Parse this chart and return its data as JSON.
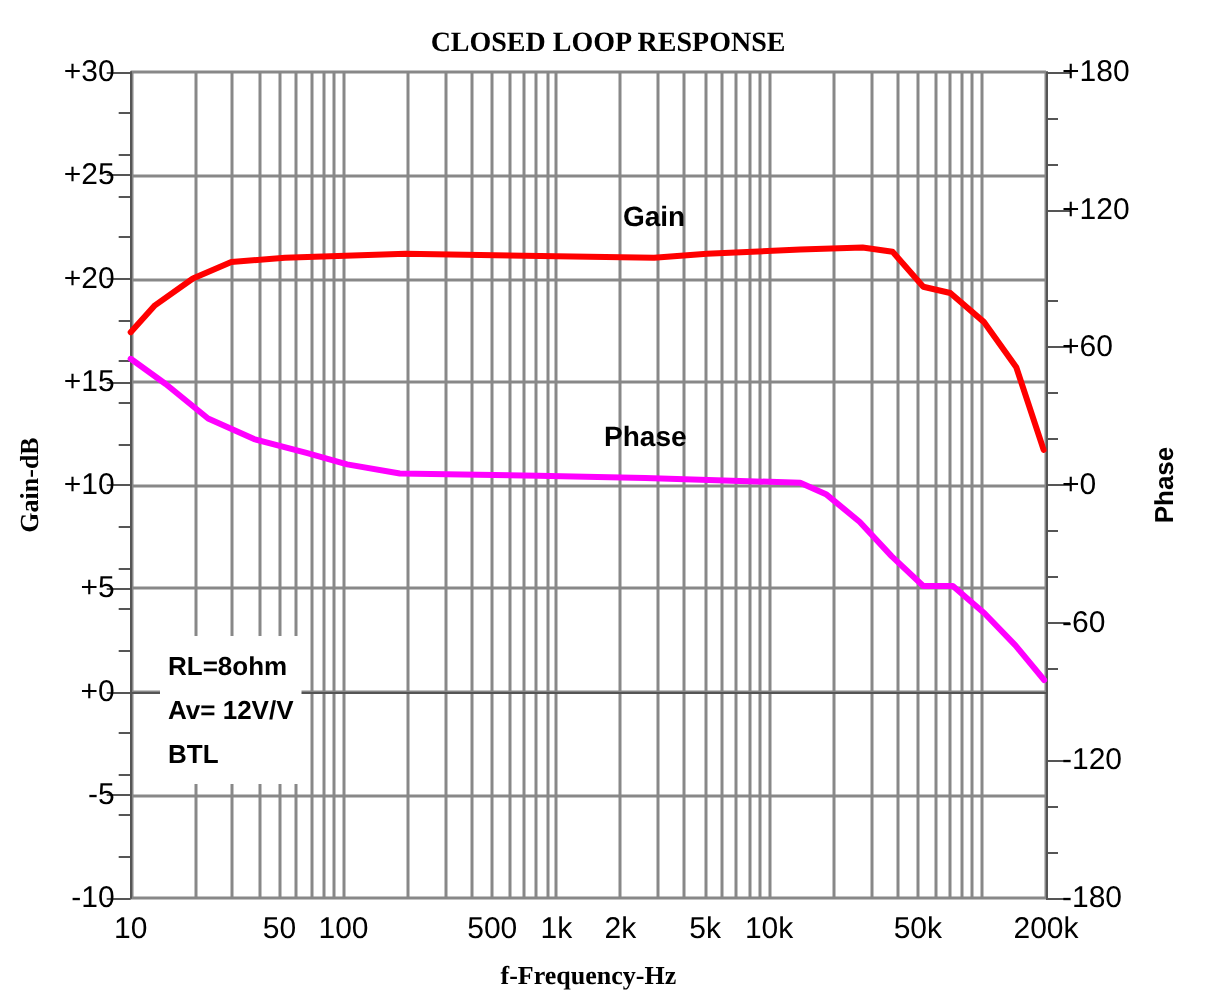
{
  "chart_data": {
    "type": "line",
    "title": "CLOSED LOOP RESPONSE",
    "xlabel": "f-Frequency-Hz",
    "ylabel": "Gain-dB",
    "y2label": "Phase",
    "log": "x",
    "grid": true,
    "legend": false,
    "marker": "none",
    "line_style": "solid",
    "annotations": [
      "RL=8ohm",
      "Av= 12V/V",
      "BTL"
    ],
    "xlim": [
      10,
      200000
    ],
    "xticks": [
      10,
      {
        "value": 20,
        "label": null
      },
      {
        "value": 30,
        "label": null
      },
      {
        "value": 40,
        "label": null
      },
      50,
      {
        "value": 60,
        "label": null
      },
      {
        "value": 70,
        "label": null
      },
      {
        "value": 80,
        "label": null
      },
      {
        "value": 90,
        "label": null
      },
      100,
      {
        "value": 200,
        "label": null
      },
      {
        "value": 300,
        "label": null
      },
      {
        "value": 400,
        "label": null
      },
      500,
      {
        "value": 600,
        "label": null
      },
      {
        "value": 700,
        "label": null
      },
      {
        "value": 800,
        "label": null
      },
      {
        "value": 900,
        "label": null
      },
      {
        "value": 1000,
        "label": "1k"
      },
      {
        "value": 2000,
        "label": "2k"
      },
      {
        "value": 3000,
        "label": null
      },
      {
        "value": 4000,
        "label": null
      },
      {
        "value": 5000,
        "label": "5k"
      },
      {
        "value": 6000,
        "label": null
      },
      {
        "value": 7000,
        "label": null
      },
      {
        "value": 8000,
        "label": null
      },
      {
        "value": 9000,
        "label": null
      },
      {
        "value": 10000,
        "label": "10k"
      },
      {
        "value": 20000,
        "label": null
      },
      {
        "value": 30000,
        "label": null
      },
      {
        "value": 40000,
        "label": null
      },
      {
        "value": 50000,
        "label": "50k"
      },
      {
        "value": 60000,
        "label": null
      },
      {
        "value": 70000,
        "label": null
      },
      {
        "value": 80000,
        "label": null
      },
      {
        "value": 90000,
        "label": null
      },
      {
        "value": 100000,
        "label": null
      },
      {
        "value": 200000,
        "label": "200k"
      }
    ],
    "ylim": [
      -10,
      30
    ],
    "yticks": [
      {
        "value": -10,
        "label": "-10"
      },
      {
        "value": -5,
        "label": "-5"
      },
      {
        "value": 0,
        "label": "+0"
      },
      {
        "value": 5,
        "label": "+5"
      },
      {
        "value": 10,
        "label": "+10"
      },
      {
        "value": 15,
        "label": "+15"
      },
      {
        "value": 20,
        "label": "+20"
      },
      {
        "value": 25,
        "label": "+25"
      },
      {
        "value": 30,
        "label": "+30"
      }
    ],
    "y2lim": [
      -180,
      180
    ],
    "y2ticks": [
      {
        "value": -180,
        "label": "-180"
      },
      {
        "value": -120,
        "label": "-120"
      },
      {
        "value": -60,
        "label": "-60"
      },
      {
        "value": 0,
        "label": "+0"
      },
      {
        "value": 60,
        "label": "+60"
      },
      {
        "value": 120,
        "label": "+120"
      },
      {
        "value": 180,
        "label": "+180"
      }
    ],
    "series": [
      {
        "name": "Gain",
        "color": "#ff0000",
        "x": [
          10,
          13,
          19.6,
          29.7,
          53,
          196,
          2880,
          5100,
          14000,
          27500,
          38000,
          53000,
          71000,
          102000,
          145000,
          195000
        ],
        "values": [
          17.4,
          18.7,
          20.0,
          20.8,
          21.0,
          21.2,
          21.0,
          21.2,
          21.4,
          21.5,
          21.3,
          19.6,
          19.3,
          17.9,
          15.7,
          11.7
        ]
      },
      {
        "name": "Phase",
        "color": "#ff00ff",
        "axis": "y2",
        "x": [
          10,
          14.6,
          23.1,
          38,
          67,
          104,
          184,
          820,
          2620,
          14000,
          18500,
          26600,
          37600,
          53000,
          73000,
          103000,
          144000,
          196000
        ],
        "values": [
          55,
          44,
          29,
          20,
          14,
          9,
          5,
          4,
          3,
          1,
          -4,
          -16,
          -31,
          -44,
          -44,
          -56,
          -70,
          -85
        ]
      }
    ]
  }
}
